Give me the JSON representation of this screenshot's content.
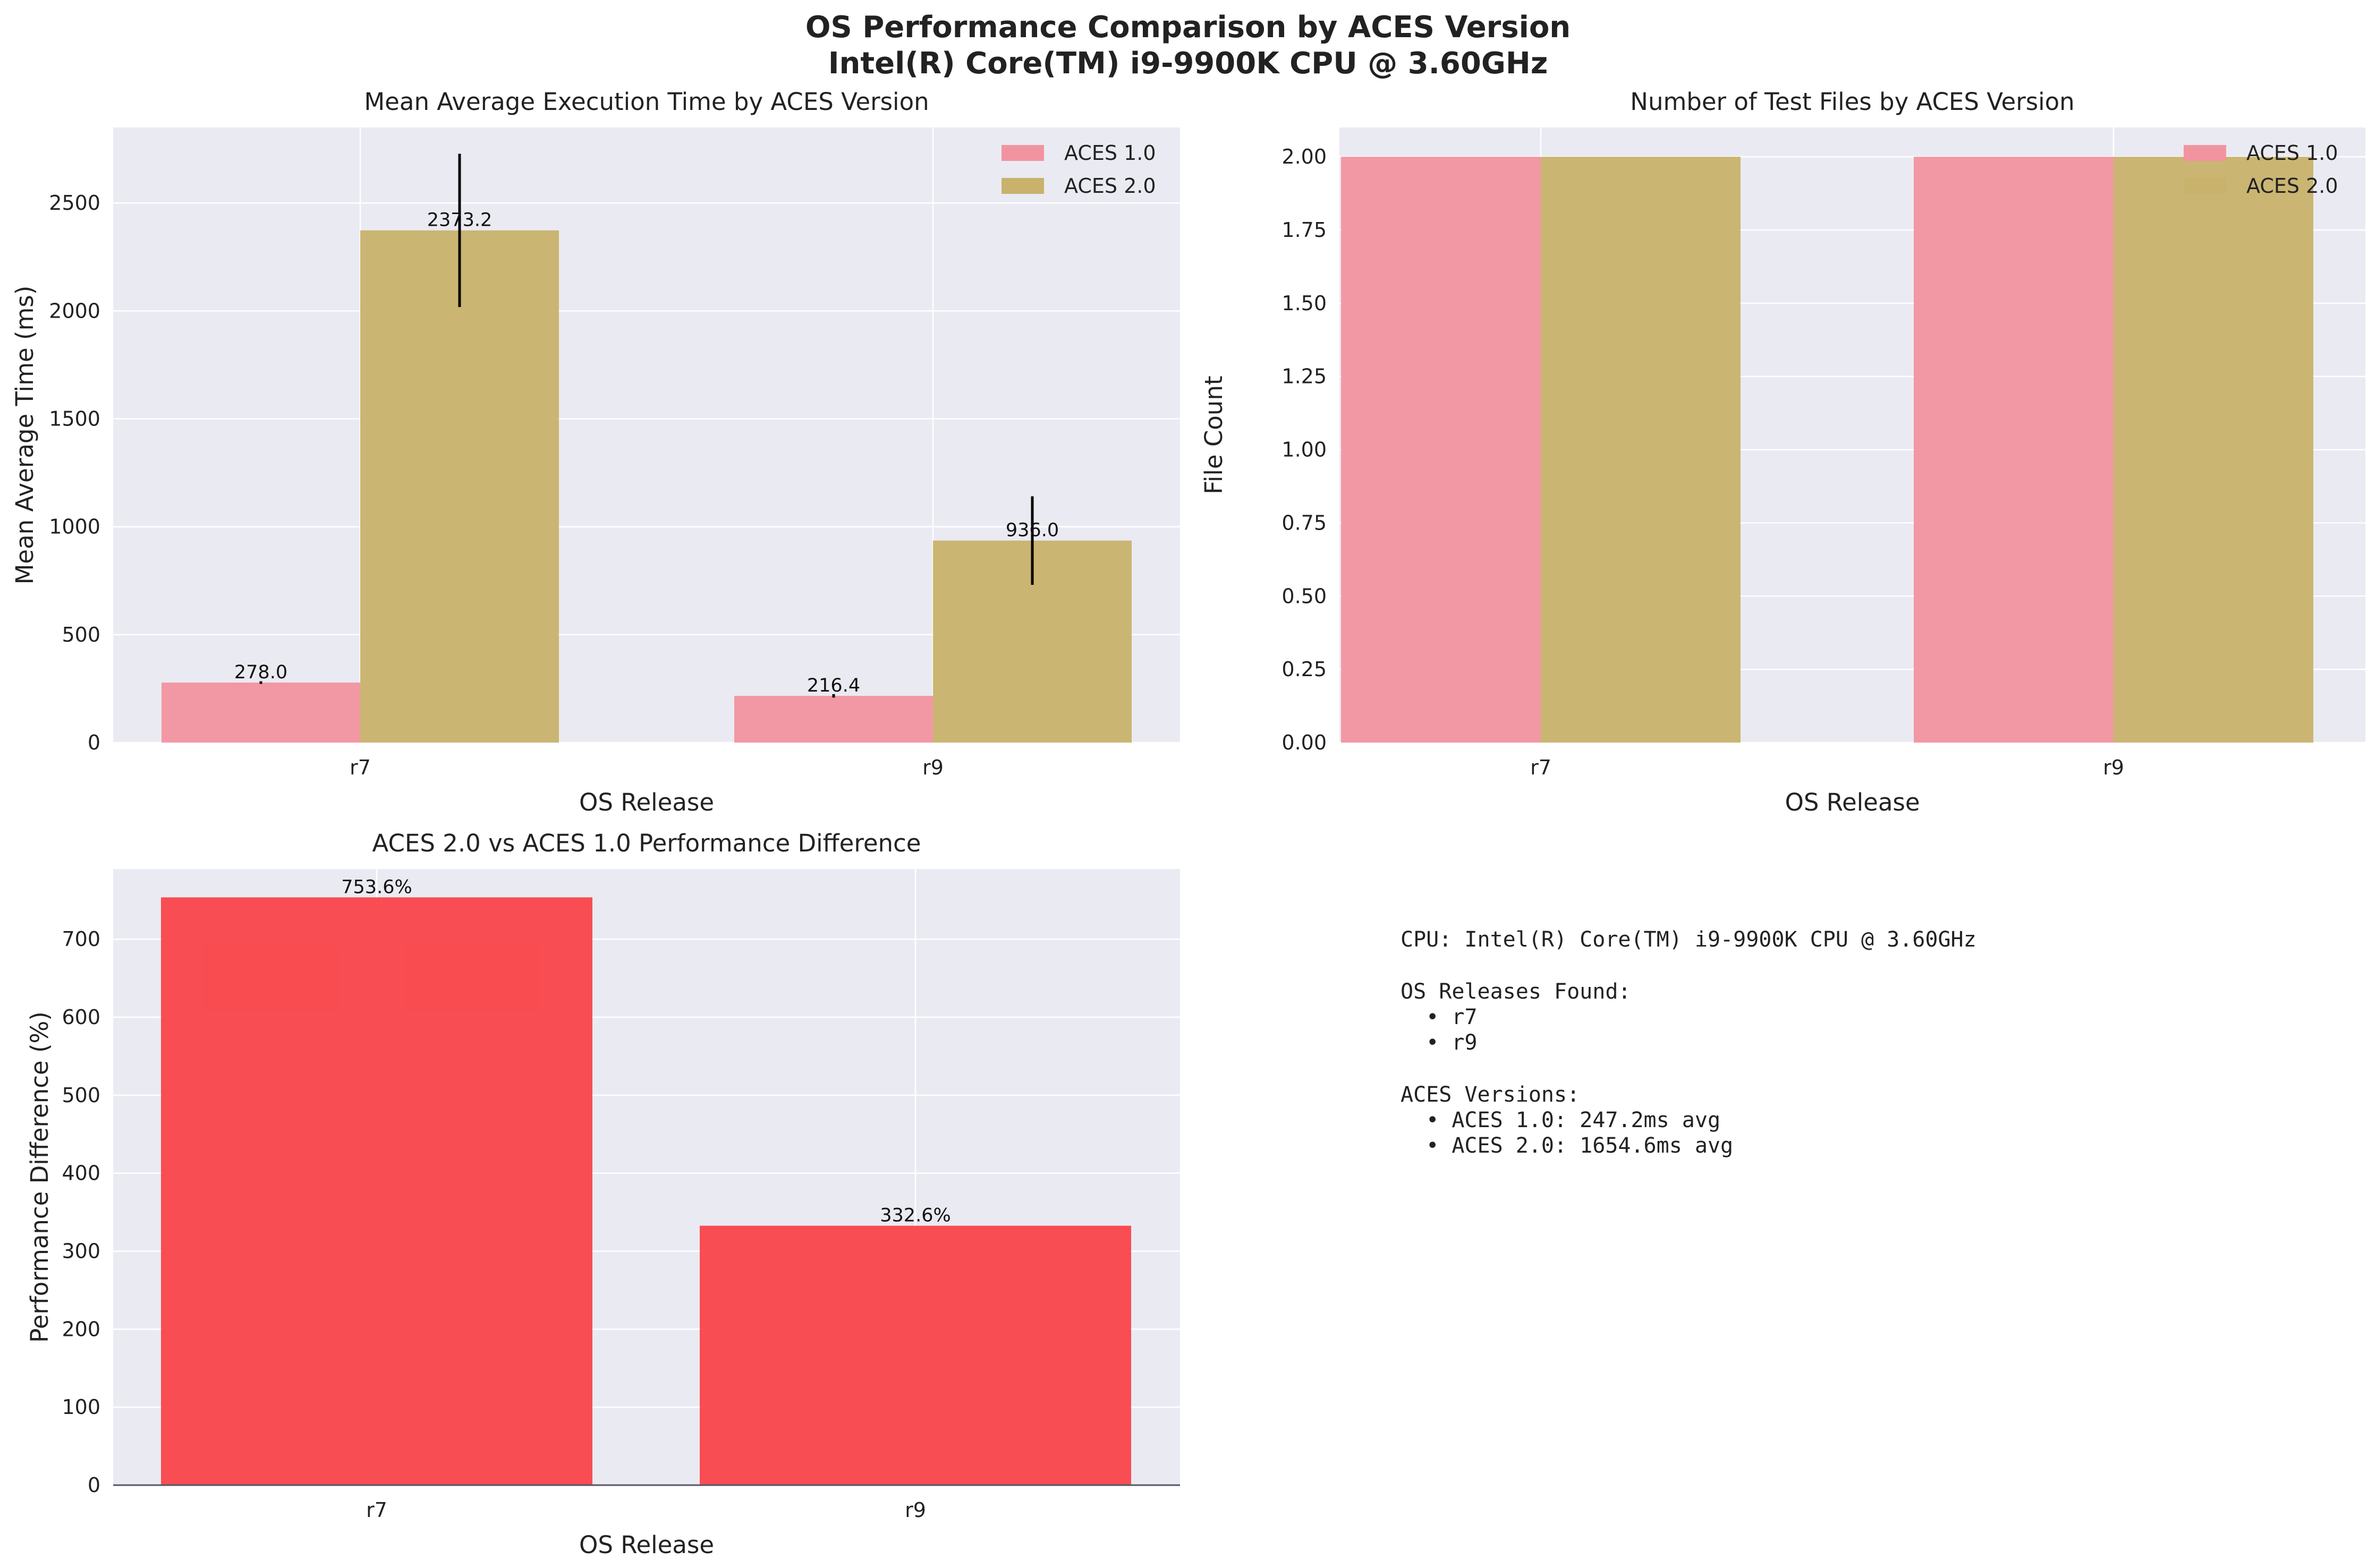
{
  "figure": {
    "title_line1": "OS Performance Comparison by ACES Version",
    "title_line2": "Intel(R) Core(TM) i9-9900K CPU @ 3.60GHz"
  },
  "chart_data": [
    {
      "type": "bar",
      "title": "Mean Average Execution Time by ACES Version",
      "xlabel": "OS Release",
      "ylabel": "Mean Average Time (ms)",
      "categories": [
        "r7",
        "r9"
      ],
      "series": [
        {
          "name": "ACES 1.0",
          "values": [
            278.0,
            216.4
          ],
          "errors": [
            6,
            8
          ],
          "labels": [
            "278.0",
            "216.4"
          ]
        },
        {
          "name": "ACES 2.0",
          "values": [
            2373.2,
            936.0
          ],
          "errors": [
            355,
            205
          ],
          "labels": [
            "2373.2",
            "936.0"
          ]
        }
      ],
      "ylim": [
        0,
        2850
      ],
      "yticks": [
        0,
        500,
        1000,
        1500,
        2000,
        2500
      ],
      "ytick_labels": [
        "0",
        "500",
        "1000",
        "1500",
        "2000",
        "2500"
      ],
      "legend": "top-right",
      "grid": true
    },
    {
      "type": "bar",
      "title": "Number of Test Files by ACES Version",
      "xlabel": "OS Release",
      "ylabel": "File Count",
      "categories": [
        "r7",
        "r9"
      ],
      "series": [
        {
          "name": "ACES 1.0",
          "values": [
            2,
            2
          ]
        },
        {
          "name": "ACES 2.0",
          "values": [
            2,
            2
          ]
        }
      ],
      "ylim": [
        0,
        2.1
      ],
      "yticks": [
        0,
        0.25,
        0.5,
        0.75,
        1.0,
        1.25,
        1.5,
        1.75,
        2.0
      ],
      "ytick_labels": [
        "0.00",
        "0.25",
        "0.50",
        "0.75",
        "1.00",
        "1.25",
        "1.50",
        "1.75",
        "2.00"
      ],
      "legend": "top-right",
      "grid": true
    },
    {
      "type": "bar",
      "title": "ACES 2.0 vs ACES 1.0 Performance Difference",
      "xlabel": "OS Release",
      "ylabel": "Performance Difference (%)",
      "categories": [
        "r7",
        "r9"
      ],
      "values": [
        753.6,
        332.6
      ],
      "labels": [
        "753.6%",
        "332.6%"
      ],
      "ylim": [
        0,
        790
      ],
      "yticks": [
        0,
        100,
        200,
        300,
        400,
        500,
        600,
        700
      ],
      "ytick_labels": [
        "0",
        "100",
        "200",
        "300",
        "400",
        "500",
        "600",
        "700"
      ],
      "grid": true
    }
  ],
  "info_panel": {
    "lines": [
      "CPU: Intel(R) Core(TM) i9-9900K CPU @ 3.60GHz",
      "",
      "OS Releases Found:",
      "  • r7",
      "  • r9",
      "",
      "ACES Versions:",
      "  • ACES 1.0: 247.2ms avg",
      "  • ACES 2.0: 1654.6ms avg"
    ]
  },
  "colors": {
    "aces1": "#f2949f",
    "aces2": "#c8b26c",
    "diff": "#f94449",
    "axes_bg": "#eaeaf2",
    "grid": "#ffffff",
    "error_bar": "#000000"
  }
}
